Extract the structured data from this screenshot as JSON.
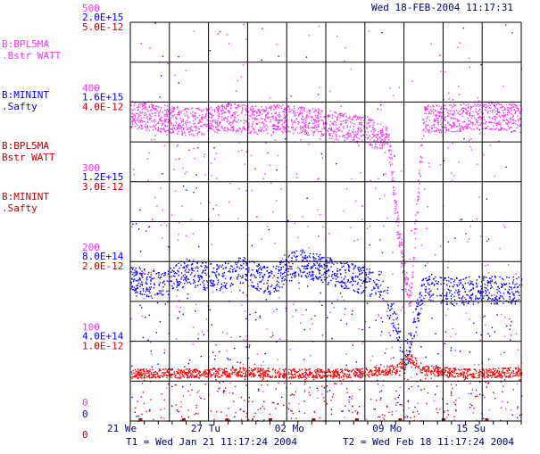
{
  "header": {
    "timestamp": "Wed 18-FEB-2004 11:17:31"
  },
  "colors": {
    "magenta": "#ff33ff",
    "blue": "#0000ff",
    "red": "#ff0000",
    "darkred": "#c00000",
    "navy": "#000080",
    "grid": "#000000"
  },
  "left_axes": {
    "magenta_ticks": [
      "500",
      "400",
      "300",
      "200",
      "100",
      "0"
    ],
    "blue_ticks": [
      "2.0E+15",
      "1.6E+15",
      "1.2E+15",
      "8.0E+14",
      "4.0E+14",
      "0"
    ],
    "red_ticks": [
      "5.0E-12",
      "4.0E-12",
      "3.0E-12",
      "2.0E-12",
      "1.0E-12",
      "0"
    ]
  },
  "legend": [
    {
      "line1": "B:BPL5MA",
      "line2": ".Bstr  WATT",
      "color": "magenta"
    },
    {
      "line1": "B:MININT",
      "line2": ".Safty",
      "color": "blue"
    },
    {
      "line1": "B:BPL5MA",
      "line2": " Bstr  WATT",
      "color": "darkred"
    },
    {
      "line1": "B:MININT",
      "line2": ".Safty",
      "color": "darkred"
    }
  ],
  "footer": {
    "t1": "T1 = Wed Jan 21 11:17:24 2004",
    "t2": "T2 = Wed Feb 18 11:17:24 2004"
  },
  "chart_data": {
    "type": "scatter",
    "x_tick_labels": [
      "21 We",
      "27 Tu",
      "02 Mo",
      "09 Mo",
      "15 Su"
    ],
    "x_range_days": [
      0,
      28
    ],
    "x_tick_positions_days": [
      0,
      6,
      12,
      19,
      25
    ],
    "series": [
      {
        "name": "B:BPL5MA .Bstr WATT",
        "color": "magenta",
        "axis": "magenta",
        "ylim": [
          0,
          500
        ],
        "typical_value": 380,
        "approx_profile_days": [
          [
            0,
            385
          ],
          [
            2,
            380
          ],
          [
            3,
            378
          ],
          [
            5,
            375
          ],
          [
            7,
            382
          ],
          [
            9,
            378
          ],
          [
            11,
            380
          ],
          [
            13,
            376
          ],
          [
            15,
            370
          ],
          [
            17,
            365
          ],
          [
            18.5,
            350
          ],
          [
            19,
            260
          ],
          [
            19.5,
            200
          ],
          [
            20,
            150
          ],
          [
            21,
            380
          ],
          [
            23,
            380
          ],
          [
            25,
            385
          ],
          [
            28,
            380
          ]
        ]
      },
      {
        "name": "B:MININT .Safty",
        "color": "blue",
        "axis": "blue",
        "ylim": [
          0,
          2000000000000000.0
        ],
        "typical_value": 700000000000000.0,
        "approx_profile_days": [
          [
            0,
            720000000000000.0
          ],
          [
            2,
            680000000000000.0
          ],
          [
            4,
            750000000000000.0
          ],
          [
            6,
            720000000000000.0
          ],
          [
            8,
            760000000000000.0
          ],
          [
            10,
            700000000000000.0
          ],
          [
            12,
            800000000000000.0
          ],
          [
            14,
            760000000000000.0
          ],
          [
            16,
            720000000000000.0
          ],
          [
            18,
            680000000000000.0
          ],
          [
            19,
            500000000000000.0
          ],
          [
            19.5,
            300000000000000.0
          ],
          [
            20,
            400000000000000.0
          ],
          [
            21,
            680000000000000.0
          ],
          [
            23,
            650000000000000.0
          ],
          [
            25,
            660000000000000.0
          ],
          [
            28,
            660000000000000.0
          ]
        ]
      },
      {
        "name": "B:BPL5MA Bstr WATT",
        "color": "red",
        "axis": "red",
        "ylim": [
          0,
          5e-12
        ],
        "typical_value": 6e-13,
        "approx_profile_days": [
          [
            0,
            6e-13
          ],
          [
            4,
            6e-13
          ],
          [
            8,
            6.2e-13
          ],
          [
            12,
            6e-13
          ],
          [
            16,
            6e-13
          ],
          [
            19,
            6.5e-13
          ],
          [
            20,
            8e-13
          ],
          [
            21,
            6.4e-13
          ],
          [
            24,
            6e-13
          ],
          [
            28,
            6.2e-13
          ]
        ]
      },
      {
        "name": "B:MININT .Safty",
        "color": "darkred",
        "axis": "red",
        "ylim": [
          0,
          5e-12
        ],
        "typical_value": 0,
        "approx_profile_days": [
          [
            0,
            0
          ],
          [
            28,
            0
          ]
        ]
      }
    ],
    "grid": true,
    "grid_divisions": {
      "x": 10,
      "y": 10
    }
  }
}
